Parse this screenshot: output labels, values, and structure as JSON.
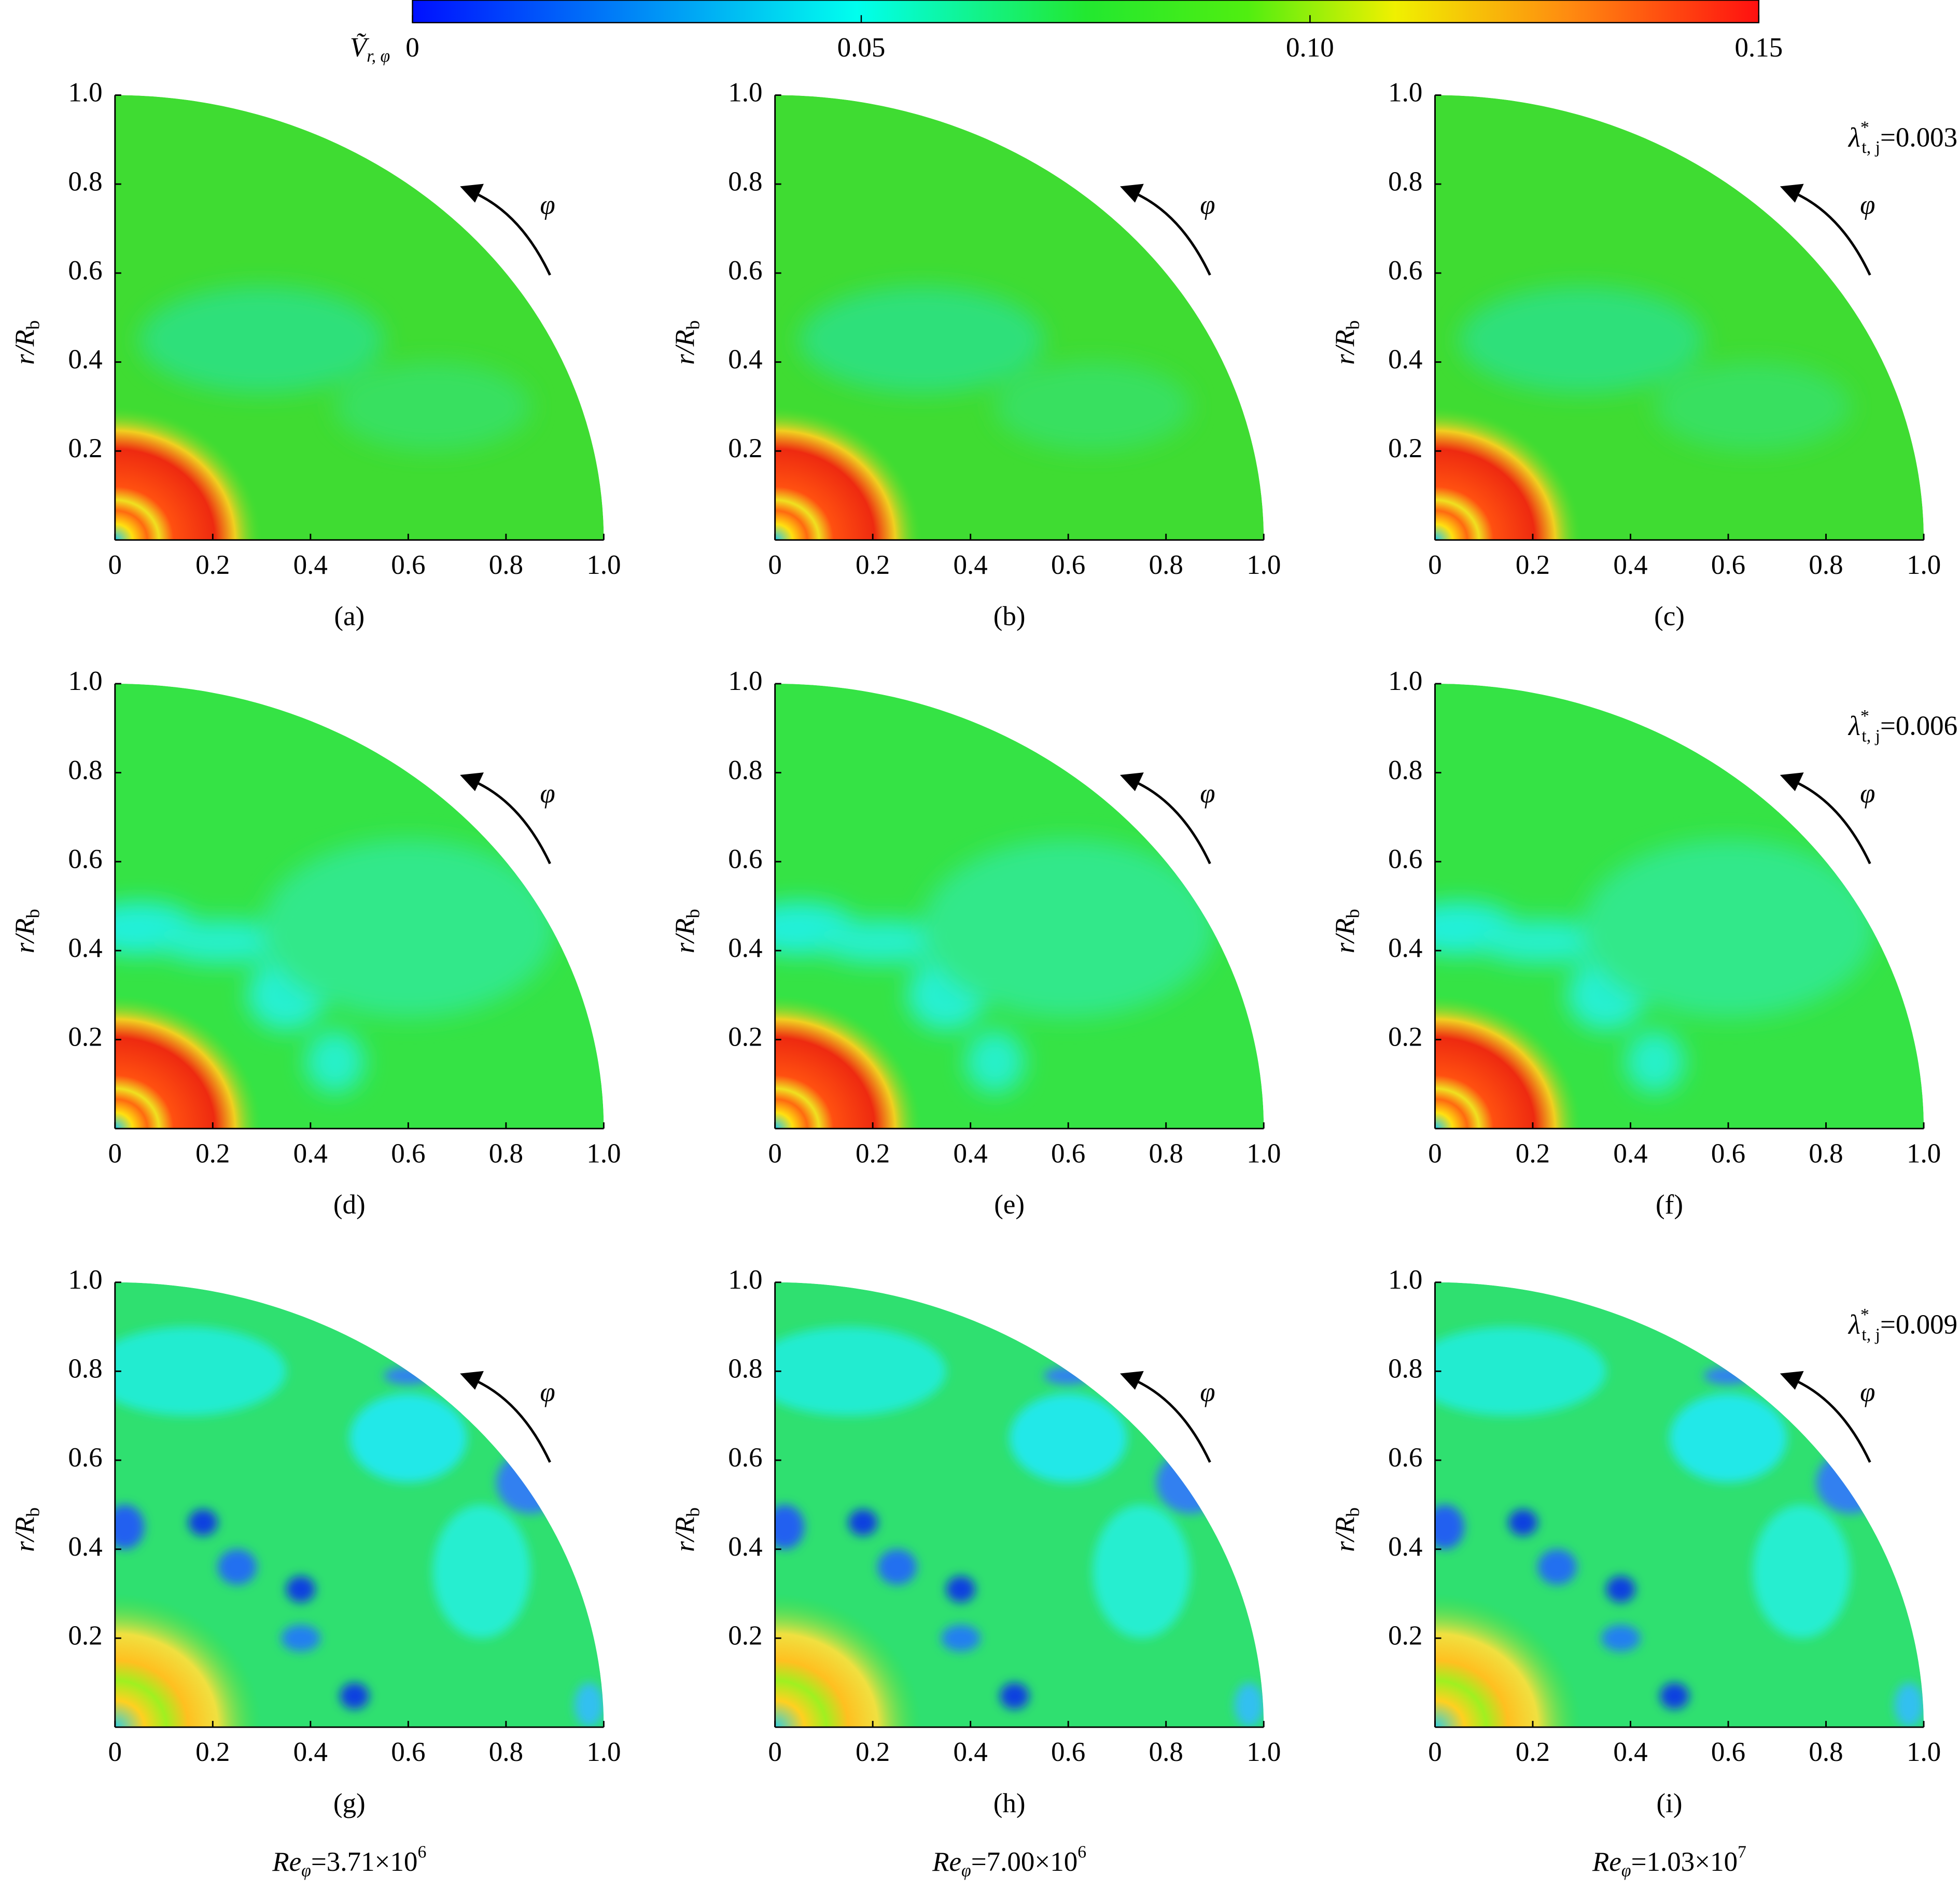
{
  "colorbar": {
    "label": "Ṽ",
    "label_sub": "r, φ",
    "lim": [
      0,
      0.15
    ],
    "ticks": [
      0,
      0.05,
      {
        "value": 0.1,
        "label": "0.10"
      },
      0.15
    ]
  },
  "chart_data": [
    {
      "type": "contour",
      "panel_label": "(a)",
      "ylabel": "r/R",
      "ylabel_sub": "b",
      "direction": "φ",
      "xlim": [
        0,
        1
      ],
      "ylim": [
        0,
        1
      ],
      "xticks": [
        0,
        0.2,
        0.4,
        0.6,
        0.8,
        {
          "value": 1,
          "label": "1.0"
        }
      ],
      "yticks": [
        0.2,
        0.4,
        0.6,
        0.8,
        {
          "value": 1,
          "label": "1.0"
        }
      ]
    },
    {
      "type": "contour",
      "panel_label": "(b)",
      "ylabel": "r/R",
      "ylabel_sub": "b",
      "direction": "φ",
      "xlim": [
        0,
        1
      ],
      "ylim": [
        0,
        1
      ],
      "xticks": [
        0,
        0.2,
        0.4,
        0.6,
        0.8,
        {
          "value": 1,
          "label": "1.0"
        }
      ],
      "yticks": [
        0.2,
        0.4,
        0.6,
        0.8,
        {
          "value": 1,
          "label": "1.0"
        }
      ]
    },
    {
      "type": "contour",
      "panel_label": "(c)",
      "ylabel": "r/R",
      "ylabel_sub": "b",
      "direction": "φ",
      "xlim": [
        0,
        1
      ],
      "ylim": [
        0,
        1
      ],
      "xticks": [
        0,
        0.2,
        0.4,
        0.6,
        0.8,
        {
          "value": 1,
          "label": "1.0"
        }
      ],
      "yticks": [
        0.2,
        0.4,
        0.6,
        0.8,
        {
          "value": 1,
          "label": "1.0"
        }
      ],
      "annotation": {
        "symbol": "λ",
        "sup": "*",
        "sub": "t, j",
        "text": "=0.003"
      }
    },
    {
      "type": "contour",
      "panel_label": "(d)",
      "ylabel": "r/R",
      "ylabel_sub": "b",
      "direction": "φ",
      "xlim": [
        0,
        1
      ],
      "ylim": [
        0,
        1
      ],
      "xticks": [
        0,
        0.2,
        0.4,
        0.6,
        0.8,
        {
          "value": 1,
          "label": "1.0"
        }
      ],
      "yticks": [
        0.2,
        0.4,
        0.6,
        0.8,
        {
          "value": 1,
          "label": "1.0"
        }
      ]
    },
    {
      "type": "contour",
      "panel_label": "(e)",
      "ylabel": "r/R",
      "ylabel_sub": "b",
      "direction": "φ",
      "xlim": [
        0,
        1
      ],
      "ylim": [
        0,
        1
      ],
      "xticks": [
        0,
        0.2,
        0.4,
        0.6,
        0.8,
        {
          "value": 1,
          "label": "1.0"
        }
      ],
      "yticks": [
        0.2,
        0.4,
        0.6,
        0.8,
        {
          "value": 1,
          "label": "1.0"
        }
      ]
    },
    {
      "type": "contour",
      "panel_label": "(f)",
      "ylabel": "r/R",
      "ylabel_sub": "b",
      "direction": "φ",
      "xlim": [
        0,
        1
      ],
      "ylim": [
        0,
        1
      ],
      "xticks": [
        0,
        0.2,
        0.4,
        0.6,
        0.8,
        {
          "value": 1,
          "label": "1.0"
        }
      ],
      "yticks": [
        0.2,
        0.4,
        0.6,
        0.8,
        {
          "value": 1,
          "label": "1.0"
        }
      ],
      "annotation": {
        "symbol": "λ",
        "sup": "*",
        "sub": "t, j",
        "text": "=0.006"
      }
    },
    {
      "type": "contour",
      "panel_label": "(g)",
      "ylabel": "r/R",
      "ylabel_sub": "b",
      "direction": "φ",
      "xlim": [
        0,
        1
      ],
      "ylim": [
        0,
        1
      ],
      "xticks": [
        0,
        0.2,
        0.4,
        0.6,
        0.8,
        {
          "value": 1,
          "label": "1.0"
        }
      ],
      "yticks": [
        0.2,
        0.4,
        0.6,
        0.8,
        {
          "value": 1,
          "label": "1.0"
        }
      ],
      "reynolds": {
        "symbol": "Re",
        "sub": "φ",
        "text": "=3.71×10",
        "sup": "6"
      }
    },
    {
      "type": "contour",
      "panel_label": "(h)",
      "ylabel": "r/R",
      "ylabel_sub": "b",
      "direction": "φ",
      "xlim": [
        0,
        1
      ],
      "ylim": [
        0,
        1
      ],
      "xticks": [
        0,
        0.2,
        0.4,
        0.6,
        0.8,
        {
          "value": 1,
          "label": "1.0"
        }
      ],
      "yticks": [
        0.2,
        0.4,
        0.6,
        0.8,
        {
          "value": 1,
          "label": "1.0"
        }
      ],
      "reynolds": {
        "symbol": "Re",
        "sub": "φ",
        "text": "=7.00×10",
        "sup": "6"
      }
    },
    {
      "type": "contour",
      "panel_label": "(i)",
      "ylabel": "r/R",
      "ylabel_sub": "b",
      "direction": "φ",
      "xlim": [
        0,
        1
      ],
      "ylim": [
        0,
        1
      ],
      "xticks": [
        0,
        0.2,
        0.4,
        0.6,
        0.8,
        {
          "value": 1,
          "label": "1.0"
        }
      ],
      "yticks": [
        0.2,
        0.4,
        0.6,
        0.8,
        {
          "value": 1,
          "label": "1.0"
        }
      ],
      "annotation": {
        "symbol": "λ",
        "sup": "*",
        "sub": "t, j",
        "text": "=0.009"
      },
      "reynolds": {
        "symbol": "Re",
        "sub": "φ",
        "text": "=1.03×10",
        "sup": "7"
      }
    }
  ]
}
